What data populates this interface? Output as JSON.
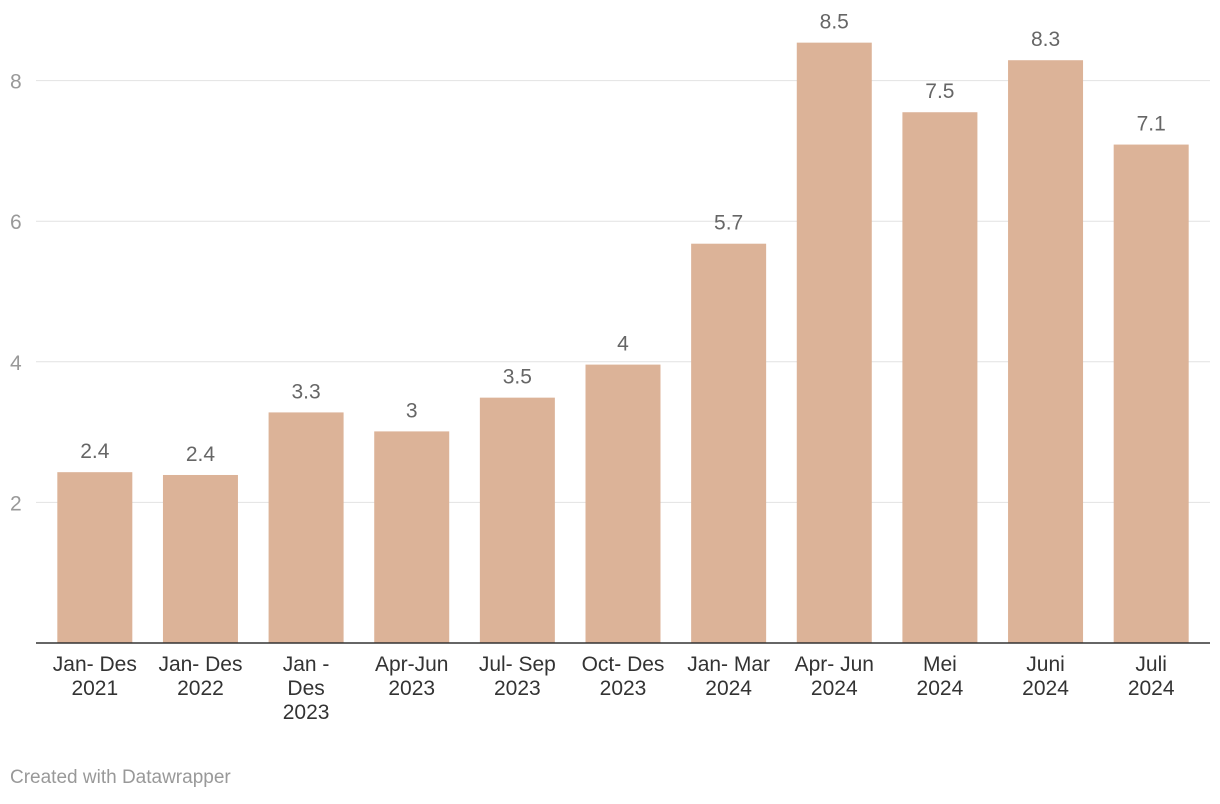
{
  "chart_data": {
    "type": "bar",
    "categories": [
      [
        "Jan- Des",
        "2021"
      ],
      [
        "Jan- Des",
        "2022"
      ],
      [
        "Jan -",
        "Des",
        "2023"
      ],
      [
        "Apr-Jun",
        "2023"
      ],
      [
        "Jul- Sep",
        "2023"
      ],
      [
        "Oct- Des",
        "2023"
      ],
      [
        "Jan- Mar",
        "2024"
      ],
      [
        "Apr- Jun",
        "2024"
      ],
      [
        "Mei",
        "2024"
      ],
      [
        "Juni",
        "2024"
      ],
      [
        "Juli",
        "2024"
      ]
    ],
    "values": [
      2.43,
      2.39,
      3.28,
      3.01,
      3.49,
      3.96,
      5.68,
      8.54,
      7.55,
      8.29,
      7.09
    ],
    "value_labels": [
      "2.4",
      "2.4",
      "3.3",
      "3",
      "3.5",
      "4",
      "5.7",
      "8.5",
      "7.5",
      "8.3",
      "7.1"
    ],
    "yticks": [
      2,
      4,
      6,
      8
    ],
    "ylim": [
      0,
      8.9
    ],
    "bar_color": "#dcb398",
    "grid": true
  },
  "footer": {
    "credit": "Created with Datawrapper"
  }
}
